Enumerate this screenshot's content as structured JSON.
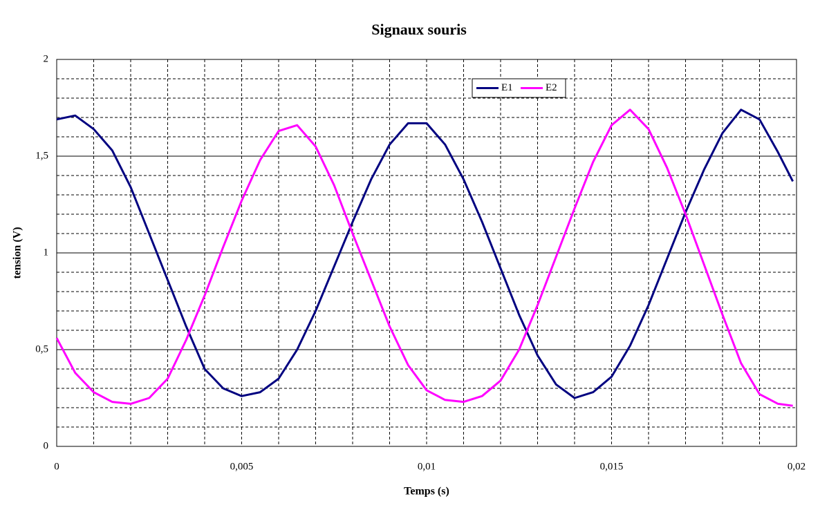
{
  "chart_data": {
    "type": "line",
    "title": "Signaux souris",
    "xlabel": "Temps (s)",
    "ylabel": "tension (V)",
    "x": [
      0,
      0.0005,
      0.001,
      0.0015,
      0.002,
      0.0025,
      0.003,
      0.0035,
      0.004,
      0.0045,
      0.005,
      0.0055,
      0.006,
      0.0065,
      0.007,
      0.0075,
      0.008,
      0.0085,
      0.009,
      0.0095,
      0.01,
      0.0105,
      0.011,
      0.0115,
      0.012,
      0.0125,
      0.013,
      0.0135,
      0.014,
      0.0145,
      0.015,
      0.0155,
      0.016,
      0.0165,
      0.017,
      0.0175,
      0.018,
      0.0185,
      0.019,
      0.0195,
      0.0199
    ],
    "series": [
      {
        "name": "E1",
        "color": "#000080",
        "values": [
          1.69,
          1.71,
          1.64,
          1.53,
          1.34,
          1.1,
          0.86,
          0.62,
          0.4,
          0.3,
          0.26,
          0.28,
          0.35,
          0.5,
          0.7,
          0.93,
          1.16,
          1.38,
          1.56,
          1.67,
          1.67,
          1.56,
          1.38,
          1.16,
          0.92,
          0.68,
          0.47,
          0.32,
          0.25,
          0.28,
          0.36,
          0.52,
          0.73,
          0.97,
          1.21,
          1.43,
          1.62,
          1.74,
          1.69,
          1.52,
          1.37
        ]
      },
      {
        "name": "E2",
        "color": "#ff00ff",
        "values": [
          0.56,
          0.38,
          0.28,
          0.23,
          0.22,
          0.25,
          0.35,
          0.55,
          0.78,
          1.03,
          1.27,
          1.48,
          1.63,
          1.66,
          1.55,
          1.35,
          1.1,
          0.86,
          0.62,
          0.42,
          0.29,
          0.24,
          0.23,
          0.26,
          0.34,
          0.5,
          0.73,
          0.98,
          1.23,
          1.47,
          1.66,
          1.74,
          1.64,
          1.44,
          1.2,
          0.94,
          0.68,
          0.43,
          0.27,
          0.22,
          0.21
        ]
      }
    ],
    "xlim": [
      0,
      0.02
    ],
    "xticks": [
      0,
      {
        "value": 0.005,
        "label": "0,005"
      },
      {
        "value": 0.01,
        "label": "0,01"
      },
      {
        "value": 0.015,
        "label": "0,015"
      },
      {
        "value": 0.02,
        "label": "0,02"
      }
    ],
    "xminorticks": [
      0.001,
      0.002,
      0.003,
      0.004,
      0.006,
      0.007,
      0.008,
      0.009,
      0.011,
      0.012,
      0.013,
      0.014,
      0.016,
      0.017,
      0.018,
      0.019
    ],
    "ylim": [
      0,
      2
    ],
    "yticks": [
      0,
      {
        "value": 0.5,
        "label": "0,5"
      },
      1,
      {
        "value": 1.5,
        "label": "1,5"
      },
      2
    ],
    "yminorticks": [
      0.1,
      0.2,
      0.3,
      0.4,
      0.6,
      0.7,
      0.8,
      0.9,
      1.1,
      1.2,
      1.3,
      1.4,
      1.6,
      1.7,
      1.8,
      1.9
    ],
    "grid": true,
    "legend": "top"
  }
}
